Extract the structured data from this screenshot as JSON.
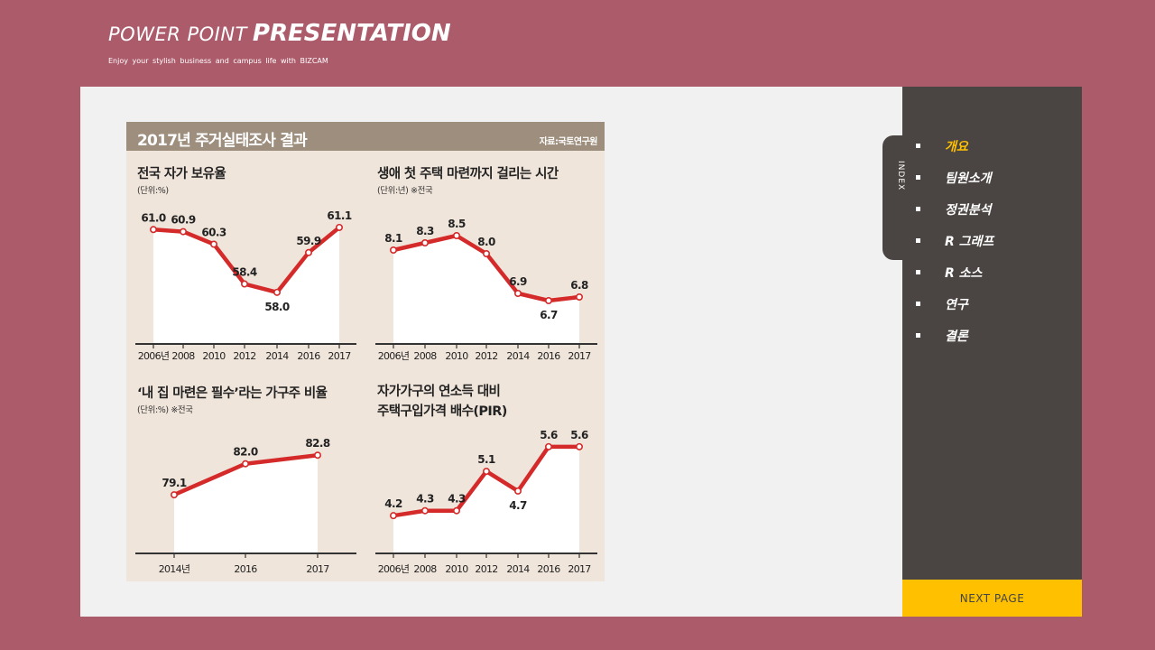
{
  "header": {
    "title_prefix": "POWER POINT",
    "title_bold": "PRESENTATION",
    "subtitle": "Enjoy your stylish  business  and campus life with BIZCAM"
  },
  "infographic": {
    "title": "2017년 주거실태조사 결과",
    "source": "자료:국토연구원"
  },
  "sidebar": {
    "index_label": "INDEX",
    "menu": [
      {
        "label": "개요",
        "active": true
      },
      {
        "label": "팀원소개",
        "active": false
      },
      {
        "label": "정권분석",
        "active": false
      },
      {
        "label": "R 그래프",
        "active": false
      },
      {
        "label": "R 소스",
        "active": false
      },
      {
        "label": "연구",
        "active": false
      },
      {
        "label": "결론",
        "active": false
      }
    ],
    "next_label": "NEXT  PAGE"
  },
  "colors": {
    "background": "#ac5b6b",
    "sidebar": "#4a4542",
    "accent": "#ffc000",
    "line": "#d42a2a",
    "banner": "#9d8e7d",
    "infographic_bg": "#f0e5db"
  },
  "chart_data": [
    {
      "type": "area",
      "title": "전국 자가 보유율",
      "subtitle": "(단위:%)",
      "categories": [
        "2006년",
        "2008",
        "2010",
        "2012",
        "2014",
        "2016",
        "2017"
      ],
      "values": [
        61.0,
        60.9,
        60.3,
        58.4,
        58.0,
        59.9,
        61.1
      ],
      "labels": [
        "61.0",
        "60.9",
        "60.3",
        "58.4",
        "58.0",
        "59.9",
        "61.1"
      ],
      "ylim": [
        57.0,
        61.4
      ]
    },
    {
      "type": "area",
      "title": "생애 첫 주택 마련까지 걸리는 시간",
      "subtitle": "(단위:년) ※전국",
      "categories": [
        "2006년",
        "2008",
        "2010",
        "2012",
        "2014",
        "2016",
        "2017"
      ],
      "values": [
        8.1,
        8.3,
        8.5,
        8.0,
        6.9,
        6.7,
        6.8
      ],
      "labels": [
        "8.1",
        "8.3",
        "8.5",
        "8.0",
        "6.9",
        "6.7",
        "6.8"
      ],
      "ylim": [
        6.2,
        8.9
      ]
    },
    {
      "type": "area",
      "title": "‘내 집 마련은 필수’라는 가구주 비율",
      "subtitle": "(단위:%) ※전국",
      "categories": [
        "2014년",
        "2016",
        "2017"
      ],
      "values": [
        79.1,
        82.0,
        82.8
      ],
      "labels": [
        "79.1",
        "82.0",
        "82.8"
      ],
      "ylim": [
        77.0,
        84.0
      ]
    },
    {
      "type": "area",
      "title": "자가가구의 연소득 대비",
      "title_line2": "주택구입가격 배수(PIR)",
      "subtitle": "",
      "categories": [
        "2006년",
        "2008",
        "2010",
        "2012",
        "2014",
        "2016",
        "2017"
      ],
      "values": [
        4.2,
        4.3,
        4.3,
        5.1,
        4.7,
        5.6,
        5.6
      ],
      "labels": [
        "4.2",
        "4.3",
        "4.3",
        "5.1",
        "4.7",
        "5.6",
        "5.6"
      ],
      "ylim": [
        3.8,
        6.0
      ]
    }
  ]
}
